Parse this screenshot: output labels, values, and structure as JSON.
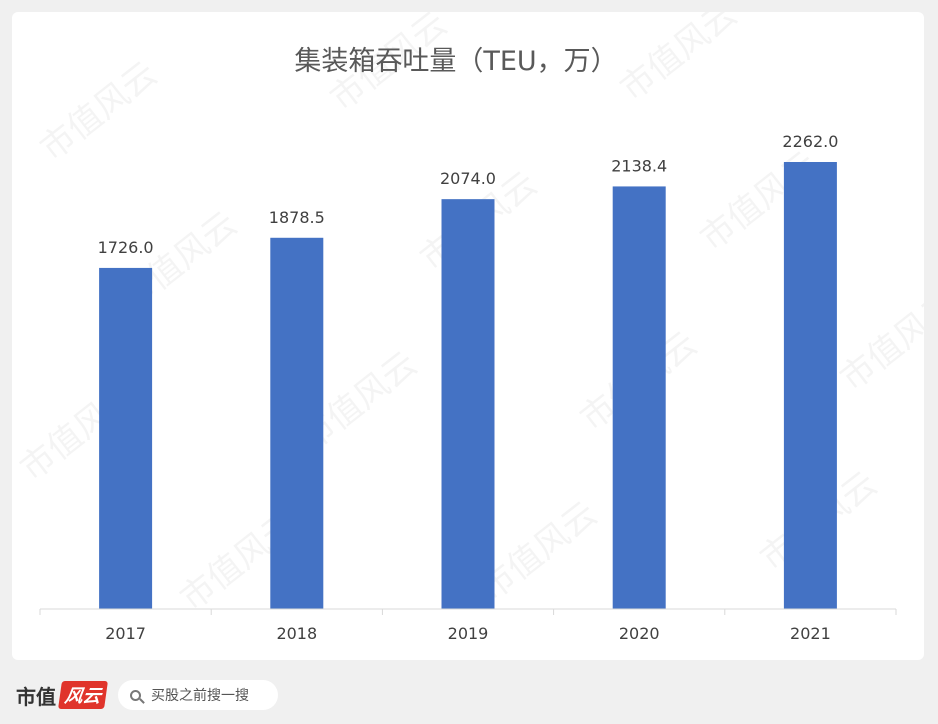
{
  "chart_data": {
    "type": "bar",
    "title": "集装箱吞吐量（TEU，万）",
    "categories": [
      "2017",
      "2018",
      "2019",
      "2020",
      "2021"
    ],
    "values": [
      1726.0,
      1878.5,
      2074.0,
      2138.4,
      2262.0
    ],
    "data_labels": [
      "1726.0",
      "1878.5",
      "2074.0",
      "2138.4",
      "2262.0"
    ],
    "ylim": [
      0,
      2500
    ],
    "grid": false,
    "legend": "none",
    "bar_color": "#4472c4"
  },
  "watermark": {
    "text": "市值风云"
  },
  "footer": {
    "brand_text": "市值",
    "brand_logo_text": "风云",
    "search_placeholder": "买股之前搜一搜"
  }
}
